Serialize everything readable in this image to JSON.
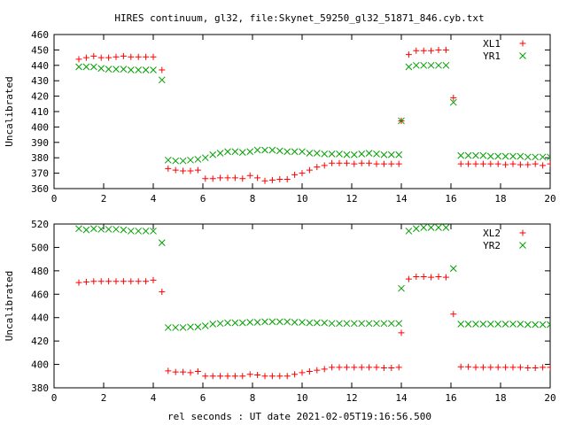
{
  "title": "HIRES continuum, gl32, file:Skynet_59250_gl32_51871_846.cyb.txt",
  "xlabel": "rel seconds : UT date 2021-02-05T19:16:56.500",
  "colors": {
    "red": "#ff0000",
    "green": "#00a000",
    "axis": "#000000"
  },
  "chart_data": [
    {
      "type": "scatter",
      "ylabel": "Uncalibrated",
      "xlim": [
        0,
        20
      ],
      "ylim": [
        360,
        460
      ],
      "xticks": [
        0,
        2,
        4,
        6,
        8,
        10,
        12,
        14,
        16,
        18,
        20
      ],
      "yticks": [
        360,
        370,
        380,
        390,
        400,
        410,
        420,
        430,
        440,
        450,
        460
      ],
      "legend_position": "top-right",
      "series": [
        {
          "name": "XL1",
          "marker": "plus",
          "color": "#ff0000",
          "points": [
            [
              1.0,
              444
            ],
            [
              1.3,
              445
            ],
            [
              1.6,
              446
            ],
            [
              1.9,
              445
            ],
            [
              2.2,
              445
            ],
            [
              2.5,
              445.5
            ],
            [
              2.8,
              446
            ],
            [
              3.1,
              445.5
            ],
            [
              3.4,
              445.5
            ],
            [
              3.7,
              445.5
            ],
            [
              4.0,
              445.5
            ],
            [
              4.35,
              437
            ],
            [
              4.6,
              373
            ],
            [
              4.9,
              372
            ],
            [
              5.2,
              371.5
            ],
            [
              5.5,
              371.5
            ],
            [
              5.8,
              372
            ],
            [
              6.1,
              366.5
            ],
            [
              6.4,
              366.5
            ],
            [
              6.7,
              367
            ],
            [
              7.0,
              367
            ],
            [
              7.3,
              367
            ],
            [
              7.6,
              366.5
            ],
            [
              7.9,
              368.5
            ],
            [
              8.2,
              367
            ],
            [
              8.5,
              365
            ],
            [
              8.8,
              365.5
            ],
            [
              9.1,
              366
            ],
            [
              9.4,
              366
            ],
            [
              9.7,
              369
            ],
            [
              10.0,
              370
            ],
            [
              10.3,
              372
            ],
            [
              10.6,
              374
            ],
            [
              10.9,
              375
            ],
            [
              11.2,
              376.5
            ],
            [
              11.5,
              376.5
            ],
            [
              11.8,
              376.5
            ],
            [
              12.1,
              376
            ],
            [
              12.4,
              376.5
            ],
            [
              12.7,
              376.5
            ],
            [
              13.0,
              376
            ],
            [
              13.3,
              376
            ],
            [
              13.6,
              376
            ],
            [
              13.9,
              376
            ],
            [
              14.0,
              404
            ],
            [
              14.3,
              447
            ],
            [
              14.6,
              449.5
            ],
            [
              14.9,
              449.5
            ],
            [
              15.2,
              449.5
            ],
            [
              15.5,
              450
            ],
            [
              15.8,
              450
            ],
            [
              16.1,
              419
            ],
            [
              16.4,
              376
            ],
            [
              16.7,
              376
            ],
            [
              17.0,
              376
            ],
            [
              17.3,
              376
            ],
            [
              17.6,
              376
            ],
            [
              17.9,
              376
            ],
            [
              18.2,
              375.5
            ],
            [
              18.5,
              376
            ],
            [
              18.8,
              375.5
            ],
            [
              19.1,
              375.5
            ],
            [
              19.4,
              376
            ],
            [
              19.7,
              375
            ],
            [
              20.0,
              376
            ]
          ]
        },
        {
          "name": "YR1",
          "marker": "cross",
          "color": "#00a000",
          "points": [
            [
              1.0,
              439
            ],
            [
              1.3,
              439
            ],
            [
              1.6,
              439
            ],
            [
              1.9,
              438
            ],
            [
              2.2,
              437.5
            ],
            [
              2.5,
              437.5
            ],
            [
              2.8,
              437.5
            ],
            [
              3.1,
              437
            ],
            [
              3.4,
              437
            ],
            [
              3.7,
              437
            ],
            [
              4.0,
              437
            ],
            [
              4.35,
              430.5
            ],
            [
              4.6,
              378.5
            ],
            [
              4.9,
              378
            ],
            [
              5.2,
              378
            ],
            [
              5.5,
              378.5
            ],
            [
              5.8,
              379
            ],
            [
              6.1,
              380
            ],
            [
              6.4,
              382
            ],
            [
              6.7,
              383
            ],
            [
              7.0,
              384
            ],
            [
              7.3,
              384
            ],
            [
              7.6,
              383.5
            ],
            [
              7.9,
              384
            ],
            [
              8.2,
              385
            ],
            [
              8.5,
              385
            ],
            [
              8.8,
              385
            ],
            [
              9.1,
              384.5
            ],
            [
              9.4,
              384
            ],
            [
              9.7,
              384
            ],
            [
              10.0,
              384
            ],
            [
              10.3,
              383
            ],
            [
              10.6,
              383
            ],
            [
              10.9,
              382.5
            ],
            [
              11.2,
              382.5
            ],
            [
              11.5,
              382.5
            ],
            [
              11.8,
              382
            ],
            [
              12.1,
              382
            ],
            [
              12.4,
              382.5
            ],
            [
              12.7,
              383
            ],
            [
              13.0,
              382.5
            ],
            [
              13.3,
              382
            ],
            [
              13.6,
              382
            ],
            [
              13.9,
              382
            ],
            [
              14.0,
              404
            ],
            [
              14.3,
              439
            ],
            [
              14.6,
              440
            ],
            [
              14.9,
              440
            ],
            [
              15.2,
              440
            ],
            [
              15.5,
              440
            ],
            [
              15.8,
              440
            ],
            [
              16.1,
              416
            ],
            [
              16.4,
              381.5
            ],
            [
              16.7,
              381.5
            ],
            [
              17.0,
              381.5
            ],
            [
              17.3,
              381.5
            ],
            [
              17.6,
              381
            ],
            [
              17.9,
              381
            ],
            [
              18.2,
              381
            ],
            [
              18.5,
              381
            ],
            [
              18.8,
              381
            ],
            [
              19.1,
              380.5
            ],
            [
              19.4,
              380.5
            ],
            [
              19.7,
              380.5
            ],
            [
              20.0,
              380.5
            ]
          ]
        }
      ]
    },
    {
      "type": "scatter",
      "ylabel": "Uncalibrated",
      "xlim": [
        0,
        20
      ],
      "ylim": [
        380,
        520
      ],
      "xticks": [
        0,
        2,
        4,
        6,
        8,
        10,
        12,
        14,
        16,
        18,
        20
      ],
      "yticks": [
        380,
        400,
        420,
        440,
        460,
        480,
        500,
        520
      ],
      "legend_position": "top-right",
      "series": [
        {
          "name": "XL2",
          "marker": "plus",
          "color": "#ff0000",
          "points": [
            [
              1.0,
              470
            ],
            [
              1.3,
              470.5
            ],
            [
              1.6,
              471
            ],
            [
              1.9,
              471
            ],
            [
              2.2,
              471
            ],
            [
              2.5,
              471
            ],
            [
              2.8,
              471
            ],
            [
              3.1,
              471
            ],
            [
              3.4,
              471
            ],
            [
              3.7,
              471
            ],
            [
              4.0,
              472
            ],
            [
              4.35,
              462
            ],
            [
              4.6,
              394.5
            ],
            [
              4.9,
              393.5
            ],
            [
              5.2,
              393.5
            ],
            [
              5.5,
              393
            ],
            [
              5.8,
              394
            ],
            [
              6.1,
              390
            ],
            [
              6.4,
              390
            ],
            [
              6.7,
              390
            ],
            [
              7.0,
              390
            ],
            [
              7.3,
              390
            ],
            [
              7.6,
              390
            ],
            [
              7.9,
              391.5
            ],
            [
              8.2,
              391
            ],
            [
              8.5,
              390
            ],
            [
              8.8,
              390
            ],
            [
              9.1,
              390
            ],
            [
              9.4,
              390
            ],
            [
              9.7,
              391.5
            ],
            [
              10.0,
              393
            ],
            [
              10.3,
              394
            ],
            [
              10.6,
              395
            ],
            [
              10.9,
              396
            ],
            [
              11.2,
              397.5
            ],
            [
              11.5,
              397.5
            ],
            [
              11.8,
              397.5
            ],
            [
              12.1,
              397.5
            ],
            [
              12.4,
              397.5
            ],
            [
              12.7,
              397.5
            ],
            [
              13.0,
              397.5
            ],
            [
              13.3,
              397
            ],
            [
              13.6,
              397
            ],
            [
              13.9,
              397.5
            ],
            [
              14.0,
              427
            ],
            [
              14.3,
              473
            ],
            [
              14.6,
              475
            ],
            [
              14.9,
              475
            ],
            [
              15.2,
              474.5
            ],
            [
              15.5,
              475
            ],
            [
              15.8,
              474.5
            ],
            [
              16.1,
              443
            ],
            [
              16.4,
              398
            ],
            [
              16.7,
              398
            ],
            [
              17.0,
              397.5
            ],
            [
              17.3,
              397.5
            ],
            [
              17.6,
              397.5
            ],
            [
              17.9,
              397.5
            ],
            [
              18.2,
              397.5
            ],
            [
              18.5,
              397.5
            ],
            [
              18.8,
              397.5
            ],
            [
              19.1,
              397
            ],
            [
              19.4,
              397
            ],
            [
              19.7,
              397.5
            ],
            [
              20.0,
              397.5
            ]
          ]
        },
        {
          "name": "YR2",
          "marker": "cross",
          "color": "#00a000",
          "points": [
            [
              1.0,
              516
            ],
            [
              1.3,
              515
            ],
            [
              1.6,
              516
            ],
            [
              1.9,
              515.5
            ],
            [
              2.2,
              515.5
            ],
            [
              2.5,
              515.5
            ],
            [
              2.8,
              515
            ],
            [
              3.1,
              514
            ],
            [
              3.4,
              514
            ],
            [
              3.7,
              514
            ],
            [
              4.0,
              514
            ],
            [
              4.35,
              504
            ],
            [
              4.6,
              431.5
            ],
            [
              4.9,
              431.5
            ],
            [
              5.2,
              431.5
            ],
            [
              5.5,
              432
            ],
            [
              5.8,
              432
            ],
            [
              6.1,
              433
            ],
            [
              6.4,
              434.5
            ],
            [
              6.7,
              435
            ],
            [
              7.0,
              435.5
            ],
            [
              7.3,
              435.5
            ],
            [
              7.6,
              435.5
            ],
            [
              7.9,
              436
            ],
            [
              8.2,
              436
            ],
            [
              8.5,
              436.5
            ],
            [
              8.8,
              436.5
            ],
            [
              9.1,
              436.5
            ],
            [
              9.4,
              436.5
            ],
            [
              9.7,
              436
            ],
            [
              10.0,
              436
            ],
            [
              10.3,
              435.5
            ],
            [
              10.6,
              435.5
            ],
            [
              10.9,
              435.5
            ],
            [
              11.2,
              435
            ],
            [
              11.5,
              435
            ],
            [
              11.8,
              435
            ],
            [
              12.1,
              435
            ],
            [
              12.4,
              435
            ],
            [
              12.7,
              435
            ],
            [
              13.0,
              435
            ],
            [
              13.3,
              435
            ],
            [
              13.6,
              435
            ],
            [
              13.9,
              435
            ],
            [
              14.0,
              465
            ],
            [
              14.3,
              514
            ],
            [
              14.6,
              516
            ],
            [
              14.9,
              517
            ],
            [
              15.2,
              517
            ],
            [
              15.5,
              517
            ],
            [
              15.8,
              517
            ],
            [
              16.1,
              482
            ],
            [
              16.4,
              434.5
            ],
            [
              16.7,
              434.5
            ],
            [
              17.0,
              434.5
            ],
            [
              17.3,
              434.5
            ],
            [
              17.6,
              434.5
            ],
            [
              17.9,
              434.5
            ],
            [
              18.2,
              434.5
            ],
            [
              18.5,
              434.5
            ],
            [
              18.8,
              434.5
            ],
            [
              19.1,
              434
            ],
            [
              19.4,
              434
            ],
            [
              19.7,
              434
            ],
            [
              20.0,
              434
            ]
          ]
        }
      ]
    }
  ]
}
